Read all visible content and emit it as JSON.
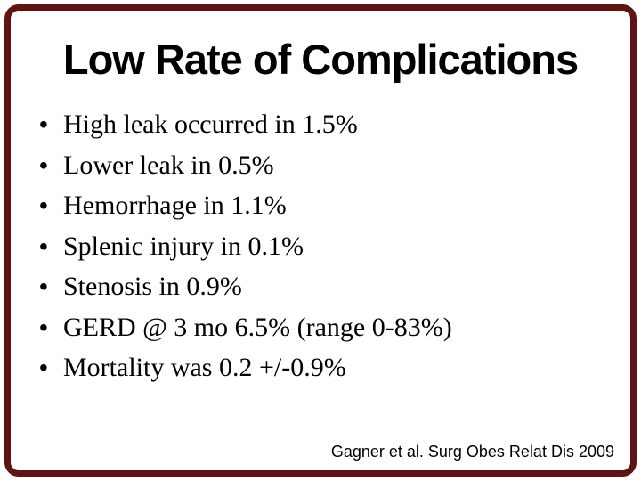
{
  "slide": {
    "title": "Low Rate of Complications",
    "bullet_glyph": "•",
    "bullets": [
      "High leak occurred in 1.5%",
      "Lower leak in 0.5%",
      "Hemorrhage in 1.1%",
      "Splenic injury in 0.1%",
      "Stenosis in 0.9%",
      "GERD @ 3 mo 6.5% (range 0-83%)",
      "Mortality was 0.2 +/-0.9%"
    ],
    "citation": "Gagner et al. Surg Obes Relat Dis 2009"
  },
  "colors": {
    "background": "#ffffff",
    "text": "#000000",
    "border_frame": "#5e1412"
  }
}
